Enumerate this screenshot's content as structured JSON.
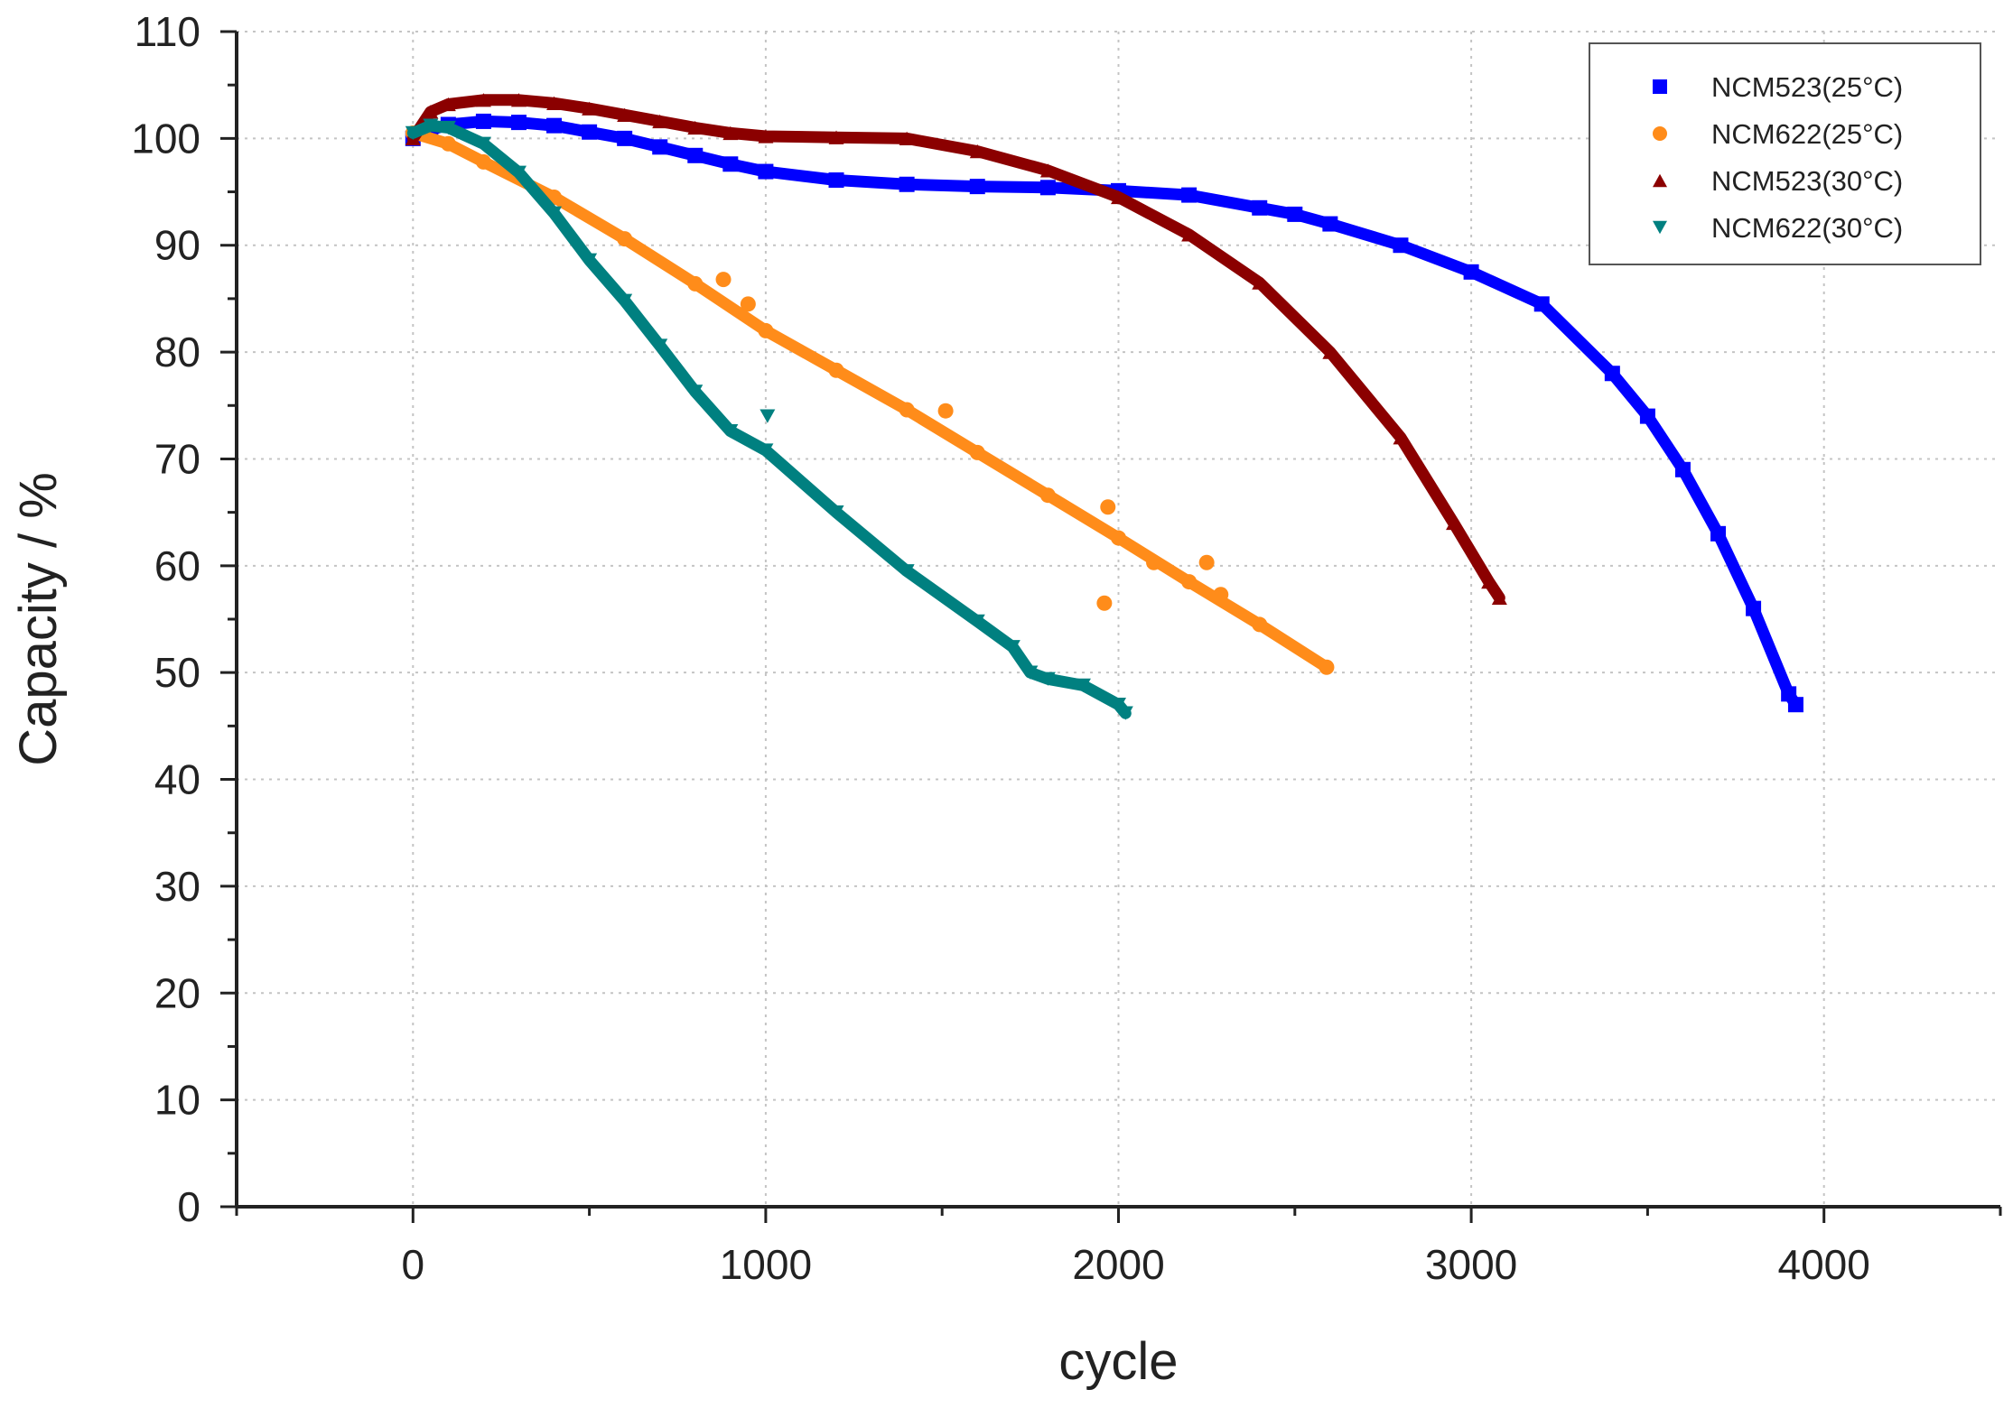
{
  "chart_data": {
    "type": "scatter",
    "xlabel": "cycle",
    "ylabel": "Capacity / %",
    "xlim": [
      -500,
      4500
    ],
    "ylim": [
      0,
      110
    ],
    "x_ticks": [
      0,
      1000,
      2000,
      3000,
      4000
    ],
    "y_ticks": [
      0,
      10,
      20,
      30,
      40,
      50,
      60,
      70,
      80,
      90,
      100,
      110
    ],
    "grid": true,
    "legend_position": "top-right",
    "series": [
      {
        "name": "NCM523(25°C)",
        "color": "#0000ff",
        "marker": "square",
        "x": [
          0,
          50,
          100,
          200,
          300,
          400,
          500,
          600,
          700,
          800,
          900,
          1000,
          1200,
          1400,
          1600,
          1800,
          2000,
          2200,
          2400,
          2500,
          2600,
          2800,
          3000,
          3200,
          3400,
          3500,
          3600,
          3700,
          3800,
          3900,
          3920
        ],
        "y": [
          100,
          100.8,
          101.3,
          101.6,
          101.5,
          101.2,
          100.6,
          100.0,
          99.2,
          98.4,
          97.6,
          96.9,
          96.1,
          95.7,
          95.5,
          95.4,
          95.1,
          94.7,
          93.5,
          92.9,
          92.0,
          90.0,
          87.5,
          84.5,
          78.0,
          74.0,
          69.0,
          63.0,
          56.0,
          48.0,
          47.0
        ]
      },
      {
        "name": "NCM622(25°C)",
        "color": "#ff8c1a",
        "marker": "circle",
        "x": [
          0,
          100,
          200,
          400,
          600,
          800,
          1000,
          1200,
          1400,
          1600,
          1800,
          2000,
          2200,
          2400,
          2590
        ],
        "y": [
          100.5,
          99.5,
          97.8,
          94.5,
          90.6,
          86.4,
          82.0,
          78.3,
          74.6,
          70.6,
          66.6,
          62.6,
          58.5,
          54.5,
          50.5
        ],
        "outliers_x": [
          880,
          950,
          1510,
          1970,
          1960,
          2100,
          2250,
          2290
        ],
        "outliers_y": [
          86.8,
          84.5,
          74.5,
          65.5,
          56.5,
          60.3,
          60.3,
          57.3
        ]
      },
      {
        "name": "NCM523(30°C)",
        "color": "#8b0000",
        "marker": "triangle-up",
        "x": [
          0,
          50,
          100,
          200,
          300,
          400,
          500,
          600,
          700,
          800,
          900,
          1000,
          1200,
          1400,
          1600,
          1800,
          2000,
          2200,
          2400,
          2600,
          2800,
          2950,
          3050,
          3080
        ],
        "y": [
          100,
          102.5,
          103.2,
          103.6,
          103.6,
          103.3,
          102.8,
          102.2,
          101.6,
          101.0,
          100.5,
          100.2,
          100.1,
          100.0,
          98.8,
          97.0,
          94.5,
          91.0,
          86.5,
          80.0,
          72.0,
          64.0,
          58.5,
          57.0
        ]
      },
      {
        "name": "NCM622(30°C)",
        "color": "#008080",
        "marker": "triangle-down",
        "x": [
          0,
          50,
          100,
          200,
          300,
          400,
          500,
          600,
          700,
          800,
          900,
          1000,
          1200,
          1400,
          1600,
          1700,
          1750,
          1800,
          1900,
          2000,
          2020
        ],
        "y": [
          100.5,
          101.2,
          101.0,
          99.5,
          96.8,
          93.0,
          88.6,
          84.8,
          80.6,
          76.3,
          72.6,
          70.8,
          65.0,
          59.5,
          54.8,
          52.4,
          50.0,
          49.4,
          48.8,
          47.0,
          46.2
        ],
        "outliers_x": [
          1005
        ],
        "outliers_y": [
          74.0
        ]
      }
    ]
  }
}
